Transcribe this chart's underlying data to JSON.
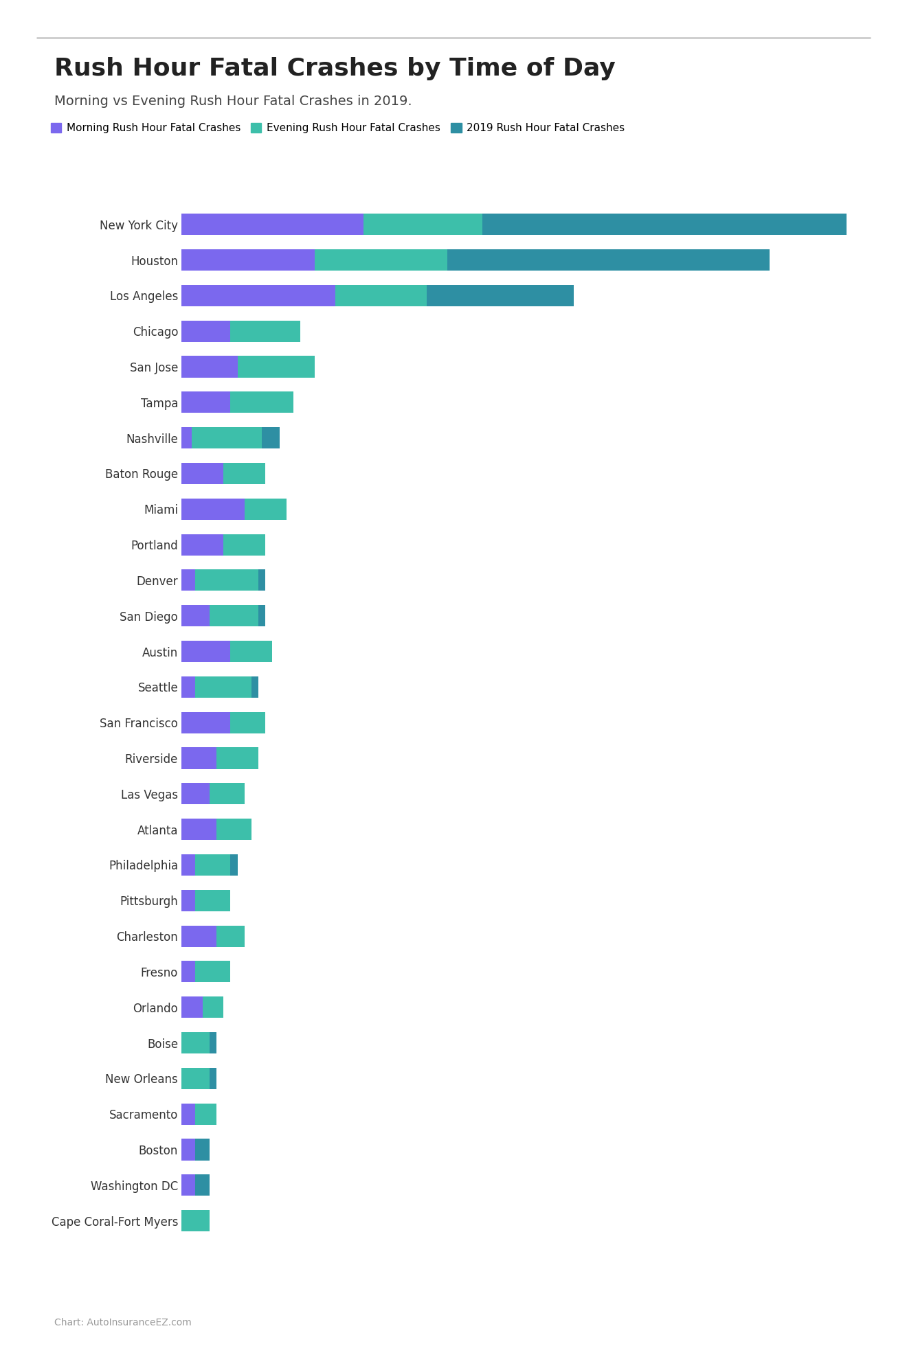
{
  "title": "Rush Hour Fatal Crashes by Time of Day",
  "subtitle": "Morning vs Evening Rush Hour Fatal Crashes in 2019.",
  "legend_labels": [
    "Morning Rush Hour Fatal Crashes",
    "Evening Rush Hour Fatal Crashes",
    "2019 Rush Hour Fatal Crashes"
  ],
  "colors": [
    "#7B68EE",
    "#3DBFAA",
    "#2E8FA3"
  ],
  "background_color": "#FFFFFF",
  "footer": "Chart: AutoInsuranceEZ.com",
  "cities": [
    "New York City",
    "Houston",
    "Los Angeles",
    "Chicago",
    "San Jose",
    "Tampa",
    "Nashville",
    "Baton Rouge",
    "Miami",
    "Portland",
    "Denver",
    "San Diego",
    "Austin",
    "Seattle",
    "San Francisco",
    "Riverside",
    "Las Vegas",
    "Atlanta",
    "Philadelphia",
    "Pittsburgh",
    "Charleston",
    "Fresno",
    "Orlando",
    "Boise",
    "New Orleans",
    "Sacramento",
    "Boston",
    "Washington DC",
    "Cape Coral-Fort Myers"
  ],
  "morning": [
    52,
    38,
    44,
    14,
    16,
    14,
    3,
    12,
    18,
    12,
    4,
    8,
    14,
    4,
    14,
    10,
    8,
    10,
    4,
    4,
    10,
    4,
    6,
    0,
    0,
    4,
    4,
    4,
    0
  ],
  "evening": [
    34,
    38,
    26,
    20,
    22,
    18,
    20,
    12,
    12,
    12,
    18,
    14,
    12,
    16,
    10,
    12,
    10,
    10,
    10,
    10,
    8,
    10,
    6,
    8,
    8,
    6,
    0,
    0,
    8
  ],
  "total_2019": [
    190,
    168,
    112,
    34,
    32,
    30,
    28,
    24,
    24,
    24,
    24,
    24,
    24,
    22,
    18,
    18,
    16,
    16,
    16,
    14,
    14,
    14,
    12,
    10,
    10,
    10,
    8,
    8,
    8
  ],
  "title_fontsize": 26,
  "subtitle_fontsize": 14,
  "legend_fontsize": 11,
  "tick_fontsize": 12,
  "footer_fontsize": 10,
  "bar_height": 0.6
}
